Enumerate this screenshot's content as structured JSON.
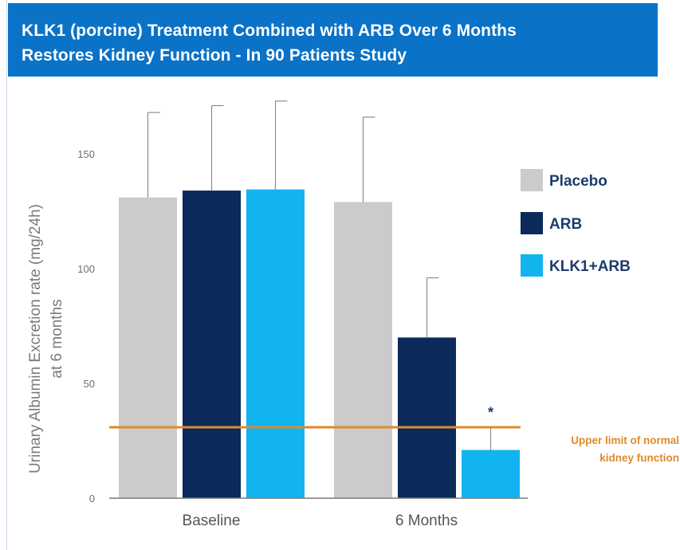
{
  "header": {
    "title_line1": "KLK1 (porcine) Treatment Combined with ARB Over 6 Months",
    "title_line2": "Restores Kidney Function - In 90 Patients Study"
  },
  "chart_data": {
    "type": "bar",
    "ylabel_line1": "Urinary Albumin Excretion rate (mg/24h)",
    "ylabel_line2": "at 6 months",
    "ylim": [
      0,
      175
    ],
    "yticks": [
      0,
      50,
      100,
      150
    ],
    "categories": [
      "Baseline",
      "6 Months"
    ],
    "series": [
      {
        "name": "Placebo",
        "color": "#cbcbcb",
        "values": [
          131,
          129
        ],
        "error_upper": [
          168,
          166
        ]
      },
      {
        "name": "ARB",
        "color": "#0c2a5a",
        "values": [
          134,
          70
        ],
        "error_upper": [
          171,
          96
        ]
      },
      {
        "name": "KLK1+ARB",
        "color": "#12b4ef",
        "values": [
          134.5,
          21
        ],
        "error_upper": [
          173,
          31
        ]
      }
    ],
    "reference_line": {
      "value": 25,
      "color": "#e08a2a",
      "label_line1": "Upper limit of normal",
      "label_line2": "kidney function"
    },
    "annotations": [
      {
        "text": "*",
        "category": "6 Months",
        "series": "KLK1+ARB"
      }
    ],
    "legend_position": "right",
    "grid": false
  }
}
